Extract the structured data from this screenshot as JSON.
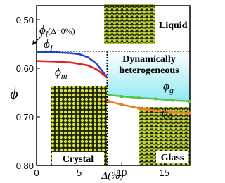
{
  "chart_data": {
    "type": "line",
    "y_label": "ϕ",
    "x_label": "Δ(%)",
    "xlim": [
      0,
      18
    ],
    "ylim": [
      0.471,
      0.8
    ],
    "xticks": [
      0,
      5,
      10,
      15
    ],
    "yticks": [
      {
        "value": 0.5,
        "label": "0.50"
      },
      {
        "value": 0.6,
        "label": "0.60"
      },
      {
        "value": 0.7,
        "label": "0.70"
      },
      {
        "value": 0.8,
        "label": "0.80"
      }
    ],
    "y_inverted": true,
    "reference_lines": {
      "y": 0.565,
      "x": 8.3
    },
    "series": [
      {
        "label": "ϕ",
        "label_sub": "I",
        "color": "#1f3fd6",
        "markers": false,
        "x": [
          0,
          2,
          4,
          5,
          6,
          7,
          8,
          8.3
        ],
        "values": [
          0.567,
          0.567,
          0.569,
          0.571,
          0.577,
          0.59,
          0.612,
          0.62
        ]
      },
      {
        "label": "ϕ",
        "label_sub": "m",
        "color": "#e0201e",
        "markers": false,
        "x": [
          0,
          2,
          4,
          6,
          7,
          8,
          8.3
        ],
        "values": [
          0.585,
          0.586,
          0.588,
          0.594,
          0.602,
          0.615,
          0.62
        ]
      },
      {
        "label": "ϕ",
        "label_sub": "g",
        "color": "#55c24a",
        "markers": true,
        "x": [
          8.5,
          10,
          12,
          14,
          16,
          18
        ],
        "values": [
          0.655,
          0.658,
          0.661,
          0.663,
          0.666,
          0.668
        ]
      },
      {
        "label": "ϕ",
        "label_sub": "0",
        "color": "#f07a2a",
        "markers": true,
        "x": [
          8.5,
          10,
          12,
          14,
          16,
          18
        ],
        "values": [
          0.668,
          0.675,
          0.682,
          0.687,
          0.69,
          0.692
        ]
      }
    ],
    "annotation": {
      "text": "ϕ",
      "sub": "l",
      "suffix": "(Δ=0%)"
    },
    "regions": [
      "Liquid",
      "Dynamically",
      "heterogeneous",
      "Crystal",
      "Glass"
    ]
  }
}
